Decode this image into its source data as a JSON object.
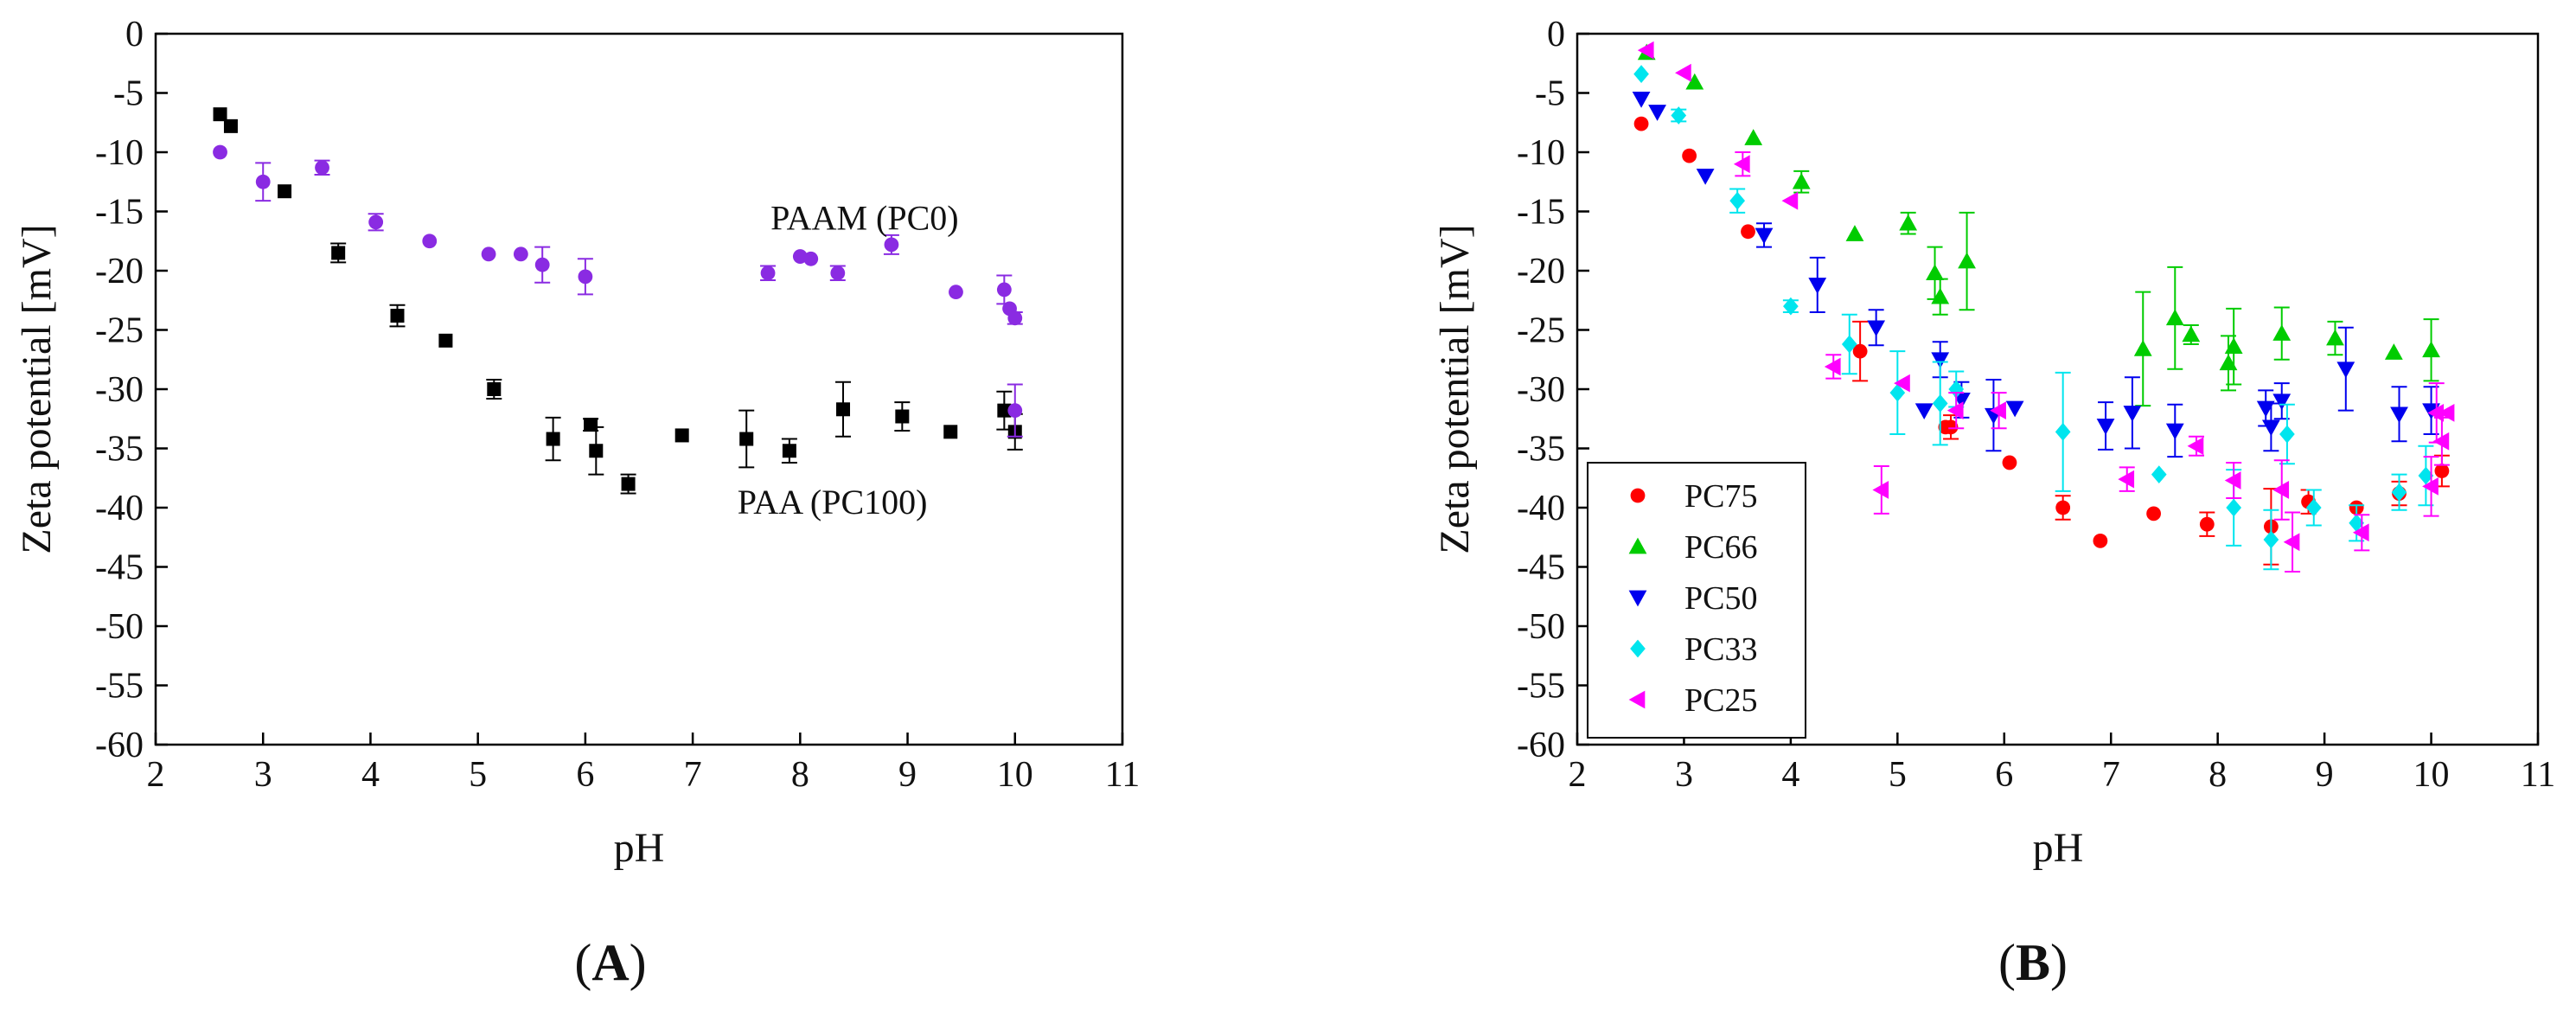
{
  "chart_data": [
    {
      "type": "scatter",
      "panel_label": "A",
      "xlabel": "pH",
      "ylabel": "Zeta potential [mV]",
      "xlim": [
        2,
        11
      ],
      "ylim": [
        -60,
        0
      ],
      "xticks": [
        "2",
        "3",
        "4",
        "5",
        "6",
        "7",
        "8",
        "9",
        "10",
        "11"
      ],
      "yticks": [
        "0",
        "-5",
        "-10",
        "-15",
        "-20",
        "-25",
        "-30",
        "-35",
        "-40",
        "-45",
        "-50",
        "-55",
        "-60"
      ],
      "annotations": [
        {
          "text": "PAAM (PC0)",
          "x": 8.6,
          "y": -15.5
        },
        {
          "text": "PAA (PC100)",
          "x": 8.3,
          "y": -39.5
        }
      ],
      "grid": false,
      "series": [
        {
          "name": "PAA (PC100)",
          "marker": "square",
          "color": "#000000",
          "points": [
            {
              "x": 2.6,
              "y": -6.8,
              "err": 0
            },
            {
              "x": 2.7,
              "y": -7.8,
              "err": 0
            },
            {
              "x": 3.2,
              "y": -13.3,
              "err": 0
            },
            {
              "x": 3.7,
              "y": -18.5,
              "err": 0.8
            },
            {
              "x": 4.25,
              "y": -23.8,
              "err": 0.9
            },
            {
              "x": 4.7,
              "y": -25.9,
              "err": 0
            },
            {
              "x": 5.15,
              "y": -30.0,
              "err": 0.8
            },
            {
              "x": 5.7,
              "y": -34.2,
              "err": 1.8
            },
            {
              "x": 6.05,
              "y": -33.0,
              "err": 0.5
            },
            {
              "x": 6.1,
              "y": -35.2,
              "err": 2.0
            },
            {
              "x": 6.4,
              "y": -38.0,
              "err": 0.8
            },
            {
              "x": 6.9,
              "y": -33.9,
              "err": 0
            },
            {
              "x": 7.5,
              "y": -34.2,
              "err": 2.4
            },
            {
              "x": 7.9,
              "y": -35.2,
              "err": 1.0
            },
            {
              "x": 8.4,
              "y": -31.7,
              "err": 2.3
            },
            {
              "x": 8.95,
              "y": -32.3,
              "err": 1.2
            },
            {
              "x": 9.4,
              "y": -33.6,
              "err": 0
            },
            {
              "x": 9.9,
              "y": -31.8,
              "err": 1.6
            },
            {
              "x": 10.0,
              "y": -33.6,
              "err": 1.5
            }
          ]
        },
        {
          "name": "PAAM (PC0)",
          "marker": "circle",
          "color": "#8a2be2",
          "points": [
            {
              "x": 2.6,
              "y": -10.0,
              "err": 0
            },
            {
              "x": 3.0,
              "y": -12.5,
              "err": 1.6
            },
            {
              "x": 3.55,
              "y": -11.3,
              "err": 0.6
            },
            {
              "x": 4.05,
              "y": -15.9,
              "err": 0.7
            },
            {
              "x": 4.55,
              "y": -17.5,
              "err": 0
            },
            {
              "x": 5.1,
              "y": -18.6,
              "err": 0
            },
            {
              "x": 5.4,
              "y": -18.6,
              "err": 0
            },
            {
              "x": 5.6,
              "y": -19.5,
              "err": 1.5
            },
            {
              "x": 6.0,
              "y": -20.5,
              "err": 1.5
            },
            {
              "x": 7.7,
              "y": -20.2,
              "err": 0.6
            },
            {
              "x": 8.0,
              "y": -18.8,
              "err": 0
            },
            {
              "x": 8.1,
              "y": -19.0,
              "err": 0
            },
            {
              "x": 8.35,
              "y": -20.2,
              "err": 0.6
            },
            {
              "x": 8.85,
              "y": -17.8,
              "err": 0.8
            },
            {
              "x": 9.45,
              "y": -21.8,
              "err": 0
            },
            {
              "x": 9.9,
              "y": -21.6,
              "err": 1.2
            },
            {
              "x": 9.95,
              "y": -23.2,
              "err": 0
            },
            {
              "x": 10.0,
              "y": -24.0,
              "err": 0.5
            },
            {
              "x": 10.0,
              "y": -31.8,
              "err": 2.2
            }
          ]
        }
      ]
    },
    {
      "type": "scatter",
      "panel_label": "B",
      "xlabel": "pH",
      "ylabel": "Zeta potential [mV]",
      "xlim": [
        2,
        11
      ],
      "ylim": [
        -60,
        0
      ],
      "xticks": [
        "2",
        "3",
        "4",
        "5",
        "6",
        "7",
        "8",
        "9",
        "10",
        "11"
      ],
      "yticks": [
        "0",
        "-5",
        "-10",
        "-15",
        "-20",
        "-25",
        "-30",
        "-35",
        "-40",
        "-45",
        "-50",
        "-55",
        "-60"
      ],
      "grid": false,
      "legend_position": "bottom-left",
      "series": [
        {
          "name": "PC75",
          "marker": "circle",
          "color": "#ff0000",
          "points": [
            {
              "x": 2.6,
              "y": -7.6,
              "err": 0
            },
            {
              "x": 3.05,
              "y": -10.3,
              "err": 0
            },
            {
              "x": 3.6,
              "y": -16.7,
              "err": 0
            },
            {
              "x": 4.65,
              "y": -26.8,
              "err": 2.5
            },
            {
              "x": 5.45,
              "y": -33.2,
              "err": 0
            },
            {
              "x": 5.5,
              "y": -33.2,
              "err": 1.0
            },
            {
              "x": 6.05,
              "y": -36.2,
              "err": 0
            },
            {
              "x": 6.55,
              "y": -40.0,
              "err": 1.0
            },
            {
              "x": 6.9,
              "y": -42.8,
              "err": 0
            },
            {
              "x": 7.4,
              "y": -40.5,
              "err": 0
            },
            {
              "x": 7.9,
              "y": -41.4,
              "err": 1.0
            },
            {
              "x": 8.5,
              "y": -41.6,
              "err": 3.2
            },
            {
              "x": 8.85,
              "y": -39.5,
              "err": 1.0
            },
            {
              "x": 9.3,
              "y": -40.0,
              "err": 0
            },
            {
              "x": 9.7,
              "y": -38.8,
              "err": 1.0
            },
            {
              "x": 10.1,
              "y": -36.9,
              "err": 1.3
            }
          ]
        },
        {
          "name": "PC66",
          "marker": "triangle-up",
          "color": "#00cc00",
          "points": [
            {
              "x": 2.65,
              "y": -1.6,
              "err": 0
            },
            {
              "x": 3.1,
              "y": -4.1,
              "err": 0
            },
            {
              "x": 3.65,
              "y": -8.8,
              "err": 0
            },
            {
              "x": 4.1,
              "y": -12.5,
              "err": 0.9
            },
            {
              "x": 4.6,
              "y": -16.9,
              "err": 0
            },
            {
              "x": 5.1,
              "y": -16.0,
              "err": 0.9
            },
            {
              "x": 5.35,
              "y": -20.2,
              "err": 2.2
            },
            {
              "x": 5.4,
              "y": -22.2,
              "err": 1.5
            },
            {
              "x": 5.65,
              "y": -19.2,
              "err": 4.1
            },
            {
              "x": 7.3,
              "y": -26.6,
              "err": 4.8
            },
            {
              "x": 7.6,
              "y": -24.0,
              "err": 4.3
            },
            {
              "x": 7.75,
              "y": -25.4,
              "err": 0.8
            },
            {
              "x": 8.1,
              "y": -27.8,
              "err": 2.3
            },
            {
              "x": 8.15,
              "y": -26.4,
              "err": 3.2
            },
            {
              "x": 8.6,
              "y": -25.3,
              "err": 2.2
            },
            {
              "x": 9.1,
              "y": -25.7,
              "err": 1.4
            },
            {
              "x": 9.65,
              "y": -26.9,
              "err": 0
            },
            {
              "x": 10.0,
              "y": -26.7,
              "err": 2.6
            }
          ]
        },
        {
          "name": "PC50",
          "marker": "triangle-down",
          "color": "#0000ee",
          "points": [
            {
              "x": 2.6,
              "y": -5.5,
              "err": 0
            },
            {
              "x": 2.75,
              "y": -6.6,
              "err": 0
            },
            {
              "x": 3.2,
              "y": -12.0,
              "err": 0
            },
            {
              "x": 3.75,
              "y": -17.0,
              "err": 1.0
            },
            {
              "x": 4.25,
              "y": -21.2,
              "err": 2.3
            },
            {
              "x": 4.8,
              "y": -24.8,
              "err": 1.5
            },
            {
              "x": 5.25,
              "y": -31.8,
              "err": 0
            },
            {
              "x": 5.4,
              "y": -27.5,
              "err": 1.5
            },
            {
              "x": 5.6,
              "y": -30.9,
              "err": 1.5
            },
            {
              "x": 5.9,
              "y": -32.2,
              "err": 3.0
            },
            {
              "x": 6.1,
              "y": -31.6,
              "err": 0
            },
            {
              "x": 6.95,
              "y": -33.1,
              "err": 2.0
            },
            {
              "x": 7.2,
              "y": -32.0,
              "err": 3.0
            },
            {
              "x": 7.6,
              "y": -33.5,
              "err": 2.2
            },
            {
              "x": 8.45,
              "y": -31.6,
              "err": 1.5
            },
            {
              "x": 8.5,
              "y": -33.2,
              "err": 2.0
            },
            {
              "x": 8.6,
              "y": -31.0,
              "err": 1.5
            },
            {
              "x": 9.2,
              "y": -28.3,
              "err": 3.5
            },
            {
              "x": 9.7,
              "y": -32.1,
              "err": 2.3
            },
            {
              "x": 10.0,
              "y": -31.8,
              "err": 2.0
            }
          ]
        },
        {
          "name": "PC33",
          "marker": "diamond",
          "color": "#00e5ee",
          "points": [
            {
              "x": 2.6,
              "y": -3.4,
              "err": 0
            },
            {
              "x": 2.95,
              "y": -6.9,
              "err": 0.5
            },
            {
              "x": 3.5,
              "y": -14.1,
              "err": 1.0
            },
            {
              "x": 4.0,
              "y": -23.0,
              "err": 0.5
            },
            {
              "x": 4.55,
              "y": -26.2,
              "err": 2.5
            },
            {
              "x": 5.0,
              "y": -30.3,
              "err": 3.5
            },
            {
              "x": 5.4,
              "y": -31.2,
              "err": 3.5
            },
            {
              "x": 5.55,
              "y": -30.0,
              "err": 1.5
            },
            {
              "x": 6.55,
              "y": -33.6,
              "err": 5.0
            },
            {
              "x": 7.45,
              "y": -37.2,
              "err": 0
            },
            {
              "x": 8.15,
              "y": -40.0,
              "err": 3.2
            },
            {
              "x": 8.5,
              "y": -42.7,
              "err": 2.5
            },
            {
              "x": 8.65,
              "y": -33.8,
              "err": 2.5
            },
            {
              "x": 8.9,
              "y": -40.0,
              "err": 1.5
            },
            {
              "x": 9.3,
              "y": -41.3,
              "err": 1.5
            },
            {
              "x": 9.7,
              "y": -38.7,
              "err": 1.5
            },
            {
              "x": 9.95,
              "y": -37.3,
              "err": 2.5
            }
          ]
        },
        {
          "name": "PC25",
          "marker": "triangle-left",
          "color": "#ff00ff",
          "points": [
            {
              "x": 2.65,
              "y": -1.4,
              "err": 0
            },
            {
              "x": 3.0,
              "y": -3.3,
              "err": 0
            },
            {
              "x": 3.55,
              "y": -11.0,
              "err": 1.0
            },
            {
              "x": 4.0,
              "y": -14.1,
              "err": 0
            },
            {
              "x": 4.4,
              "y": -28.1,
              "err": 1.0
            },
            {
              "x": 4.85,
              "y": -38.5,
              "err": 2.0
            },
            {
              "x": 5.05,
              "y": -29.5,
              "err": 0
            },
            {
              "x": 5.55,
              "y": -31.8,
              "err": 1.5
            },
            {
              "x": 5.95,
              "y": -31.8,
              "err": 1.5
            },
            {
              "x": 7.15,
              "y": -37.6,
              "err": 1.0
            },
            {
              "x": 7.8,
              "y": -34.8,
              "err": 0.8
            },
            {
              "x": 8.15,
              "y": -37.7,
              "err": 1.5
            },
            {
              "x": 8.6,
              "y": -38.5,
              "err": 2.5
            },
            {
              "x": 8.7,
              "y": -42.9,
              "err": 2.5
            },
            {
              "x": 9.35,
              "y": -42.1,
              "err": 1.5
            },
            {
              "x": 10.0,
              "y": -38.2,
              "err": 2.5
            },
            {
              "x": 10.05,
              "y": -32.0,
              "err": 2.5
            },
            {
              "x": 10.1,
              "y": -34.4,
              "err": 2.0
            },
            {
              "x": 10.15,
              "y": -32.0,
              "err": 0
            }
          ]
        }
      ]
    }
  ]
}
